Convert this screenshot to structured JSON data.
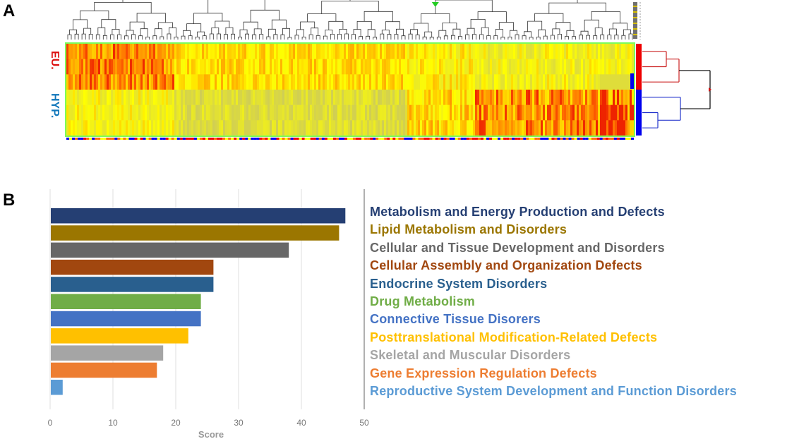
{
  "panels": {
    "a": "A",
    "b": "B"
  },
  "heatmap": {
    "group_labels": [
      {
        "label": "EU.",
        "color": "#dd1111"
      },
      {
        "label": "HYP.",
        "color": "#1177bb"
      }
    ],
    "colors": {
      "low": "#c9c760",
      "mid": "#ffff00",
      "high": "#ff6a00",
      "max": "#e50000",
      "border": "#7cfc5a",
      "eu": "#ee0000",
      "hyp": "#0000ee"
    }
  },
  "chart_data": {
    "type": "bar",
    "orientation": "horizontal",
    "xlabel": "Score",
    "xlim": [
      0,
      50
    ],
    "xticks": [
      0,
      10,
      20,
      30,
      40,
      50
    ],
    "grid": true,
    "categories": [
      "Metabolism and Energy Production and Defects",
      "Lipid Metabolism and Disorders",
      "Cellular and Tissue Development and Disorders",
      "Cellular Assembly and Organization Defects",
      "Endocrine System Disorders",
      "Drug Metabolism",
      "Connective Tissue Disorers",
      "Posttranslational Modification-Related Defects",
      "Skeletal and Muscular Disorders",
      "Gene Expression Regulation Defects",
      "Reproductive System Development and Function Disorders"
    ],
    "values": [
      47,
      46,
      38,
      26,
      26,
      24,
      24,
      22,
      18,
      17,
      2
    ],
    "colors": [
      "#253f73",
      "#9b7600",
      "#676767",
      "#a1470f",
      "#295f8e",
      "#70ad47",
      "#4472c4",
      "#ffc000",
      "#a5a5a5",
      "#ed7d31",
      "#5b9bd5"
    ]
  }
}
